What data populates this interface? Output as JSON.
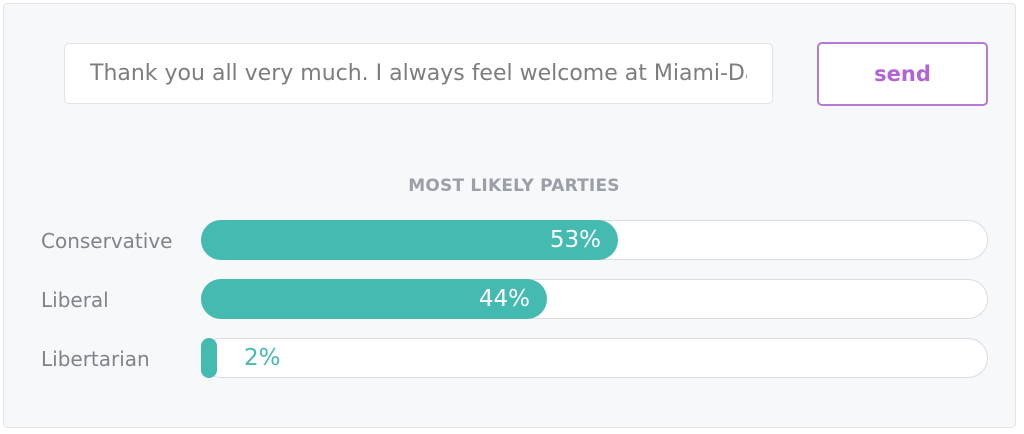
{
  "message_input": {
    "value": "Thank you all very much. I always feel welcome at Miami-Dade"
  },
  "send_button": {
    "label": "send"
  },
  "results": {
    "title": "MOST LIKELY PARTIES",
    "bar_color": "#45bab0",
    "parties": [
      {
        "label": "Conservative",
        "percent": 53,
        "percent_text": "53%"
      },
      {
        "label": "Liberal",
        "percent": 44,
        "percent_text": "44%"
      },
      {
        "label": "Libertarian",
        "percent": 2,
        "percent_text": "2%"
      }
    ]
  }
}
